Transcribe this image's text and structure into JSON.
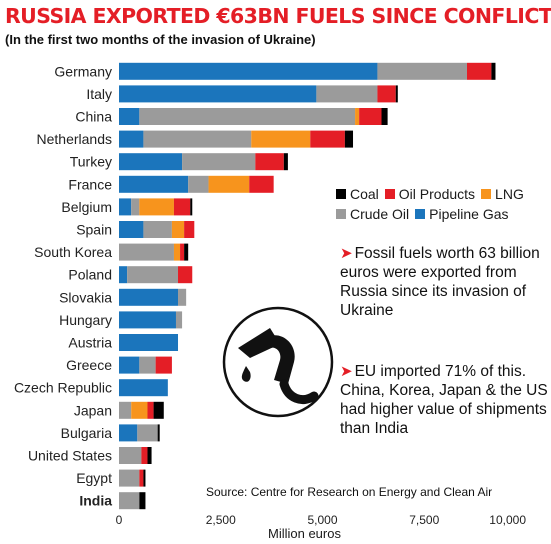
{
  "chart_data": {
    "type": "bar",
    "orientation": "horizontal",
    "stacked": true,
    "title": "RUSSIA EXPORTED €63BN FUELS SINCE CONFLICT",
    "subtitle": "(In the first two months of the invasion of Ukraine)",
    "xlabel": "Million euros",
    "xlim": [
      0,
      10000
    ],
    "xticks": [
      "0",
      "2,500",
      "5,000",
      "7,500",
      "10,000"
    ],
    "xtick_values": [
      0,
      2500,
      5000,
      7500,
      10000
    ],
    "grid": false,
    "legend_position": "right",
    "categories": [
      "Germany",
      "Italy",
      "China",
      "Netherlands",
      "Turkey",
      "France",
      "Belgium",
      "Spain",
      "South Korea",
      "Poland",
      "Slovakia",
      "Hungary",
      "Austria",
      "Greece",
      "Czech Republic",
      "Japan",
      "Bulgaria",
      "United States",
      "Egypt",
      "India"
    ],
    "highlight_category": "India",
    "series": [
      {
        "name": "Pipeline Gas",
        "color": "#1b75bc",
        "values": [
          6350,
          4850,
          500,
          600,
          1550,
          1700,
          300,
          600,
          0,
          200,
          1450,
          1400,
          1450,
          500,
          1200,
          0,
          450,
          0,
          0,
          0
        ]
      },
      {
        "name": "Crude Oil",
        "color": "#9b9b9b",
        "values": [
          2200,
          1500,
          5300,
          2650,
          1800,
          500,
          200,
          700,
          1350,
          1250,
          200,
          150,
          0,
          400,
          0,
          300,
          500,
          550,
          500,
          500
        ]
      },
      {
        "name": "LNG",
        "color": "#f7941d",
        "values": [
          0,
          0,
          100,
          1450,
          0,
          1000,
          850,
          300,
          150,
          0,
          0,
          0,
          0,
          0,
          0,
          400,
          0,
          0,
          0,
          0
        ]
      },
      {
        "name": "Oil Products",
        "color": "#e41e26",
        "values": [
          600,
          450,
          550,
          850,
          700,
          600,
          400,
          250,
          100,
          350,
          0,
          0,
          0,
          400,
          0,
          150,
          0,
          150,
          100,
          0
        ]
      },
      {
        "name": "Coal",
        "color": "#000000",
        "values": [
          100,
          50,
          150,
          200,
          100,
          0,
          50,
          0,
          100,
          0,
          0,
          0,
          0,
          0,
          0,
          250,
          50,
          100,
          50,
          150
        ]
      }
    ],
    "legend": [
      "Coal",
      "Oil Products",
      "LNG",
      "Crude Oil",
      "Pipeline Gas"
    ]
  },
  "annotations": {
    "note1_arrow": "➤",
    "note1_text": "Fossil fuels worth 63 billion euros were exported from Russia since its invasion of Ukraine",
    "note2_arrow": "➤",
    "note2_text": "EU imported 71% of this. China, Korea, Japan & the US had higher value of shipments than India",
    "source": "Source: Centre for Research on Energy and Clean Air"
  },
  "icons": {
    "pump": "fuel-pump-icon"
  }
}
